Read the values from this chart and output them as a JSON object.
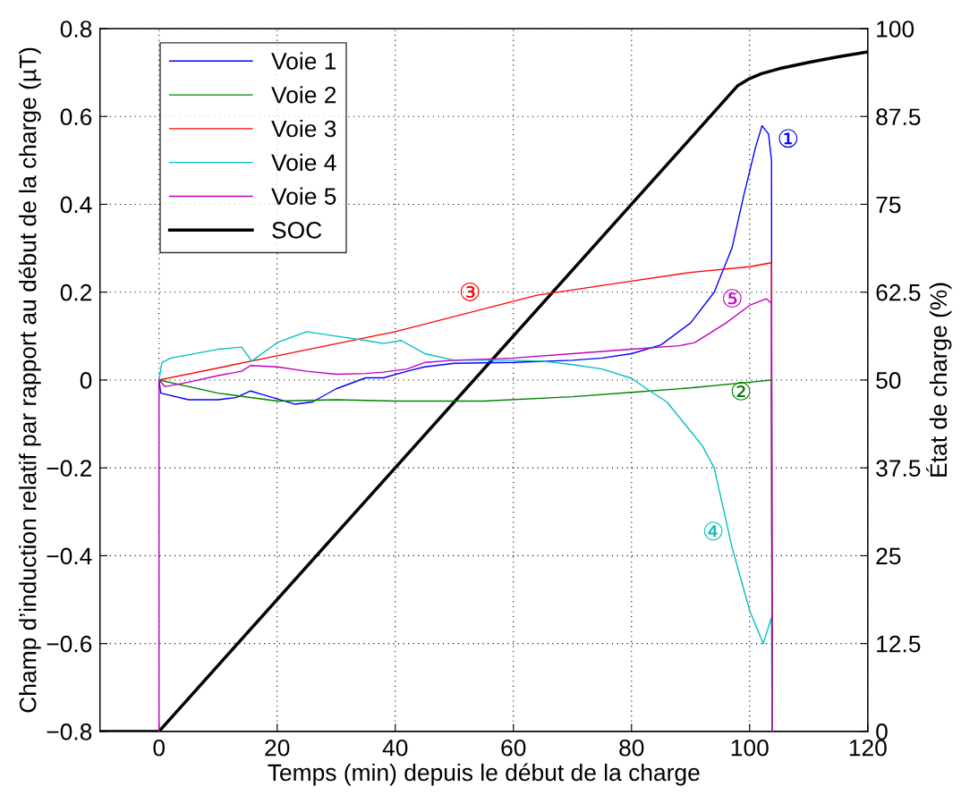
{
  "chart_data": {
    "type": "line",
    "xlabel": "Temps (min) depuis le début de la charge",
    "ylabel": "Champ d’induction relatif par rapport au début de la charge (µT)",
    "y2label": "État de charge (%)",
    "xlim": [
      -10,
      120
    ],
    "xticks": [
      0,
      20,
      40,
      60,
      80,
      100,
      120
    ],
    "ylim": [
      -0.8,
      0.8
    ],
    "yticks": [
      {
        "value": -0.8,
        "label": "−0.8"
      },
      {
        "value": -0.6,
        "label": "−0.6"
      },
      {
        "value": -0.4,
        "label": "−0.4"
      },
      {
        "value": -0.2,
        "label": "−0.2"
      },
      0,
      0.2,
      0.4,
      0.6,
      0.8
    ],
    "y2lim": [
      0,
      100
    ],
    "y2ticks": [
      0,
      12.5,
      25,
      37.5,
      50,
      62.5,
      75,
      87.5,
      100
    ],
    "grid": true,
    "legend": "top left",
    "marker": "none",
    "line_style": "solid",
    "series": [
      {
        "name": "Voie 1",
        "color": "#0000ff",
        "x": [
          0,
          0.3,
          5,
          10,
          13,
          15.5,
          18,
          23,
          26,
          30,
          35,
          38,
          42,
          45,
          50,
          60,
          70,
          75,
          80,
          85,
          90,
          94,
          97,
          99,
          101,
          102.1,
          103.2,
          103.7,
          103.8
        ],
        "values": [
          0,
          -0.03,
          -0.045,
          -0.045,
          -0.04,
          -0.025,
          -0.035,
          -0.055,
          -0.05,
          -0.02,
          0.005,
          0.005,
          0.02,
          0.03,
          0.038,
          0.04,
          0.045,
          0.05,
          0.06,
          0.08,
          0.13,
          0.2,
          0.3,
          0.42,
          0.53,
          0.579,
          0.56,
          0.5,
          -0.8
        ]
      },
      {
        "name": "Voie 2",
        "color": "#008000",
        "x": [
          0,
          10,
          20,
          30,
          40,
          55,
          70,
          80,
          90,
          100,
          103.7,
          103.8
        ],
        "values": [
          0,
          -0.03,
          -0.048,
          -0.045,
          -0.048,
          -0.048,
          -0.038,
          -0.028,
          -0.018,
          -0.005,
          0,
          -0.8
        ]
      },
      {
        "name": "Voie 3",
        "color": "#ff0000",
        "x": [
          0,
          20,
          40,
          64,
          80,
          90,
          100,
          103.7,
          103.8
        ],
        "values": [
          0,
          0.055,
          0.11,
          0.193,
          0.225,
          0.245,
          0.258,
          0.267,
          -0.8
        ]
      },
      {
        "name": "Voie 4",
        "color": "#00bfbf",
        "x": [
          0,
          0.5,
          2,
          10,
          14,
          15.7,
          20,
          25,
          30,
          35,
          38,
          41,
          45,
          50,
          60,
          65,
          70,
          75,
          80,
          83,
          86,
          89,
          92,
          94,
          97,
          100,
          102.3,
          103.7,
          103.8
        ],
        "values": [
          0,
          0.04,
          0.05,
          0.07,
          0.075,
          0.043,
          0.085,
          0.11,
          0.1,
          0.09,
          0.083,
          0.09,
          0.06,
          0.045,
          0.045,
          0.043,
          0.035,
          0.025,
          0.004,
          -0.024,
          -0.05,
          -0.1,
          -0.15,
          -0.2,
          -0.38,
          -0.525,
          -0.6,
          -0.54,
          -0.8
        ]
      },
      {
        "name": "Voie 5",
        "color": "#bf00bf",
        "x": [
          0,
          0,
          1,
          5,
          10,
          14,
          15.5,
          20,
          25,
          30,
          35,
          38,
          42,
          45,
          50,
          60,
          70,
          80,
          88,
          90.7,
          96,
          100,
          102.8,
          103.7,
          103.8
        ],
        "values": [
          -0.8,
          0,
          -0.015,
          -0.005,
          0.01,
          0.02,
          0.033,
          0.03,
          0.02,
          0.013,
          0.015,
          0.018,
          0.025,
          0.04,
          0.045,
          0.05,
          0.06,
          0.07,
          0.078,
          0.085,
          0.13,
          0.17,
          0.185,
          0.175,
          -0.8
        ]
      },
      {
        "name": "SOC",
        "color": "#000000",
        "axis": "y2",
        "x": [
          -10,
          0,
          98,
          100,
          102,
          105,
          110,
          115,
          120
        ],
        "values": [
          0,
          0,
          91.9,
          92.9,
          93.6,
          94.3,
          95.2,
          96.0,
          96.7
        ]
      }
    ],
    "annotations": [
      {
        "text": "①",
        "x": 102.1,
        "y": 0.579
      },
      {
        "text": "②",
        "x": 100,
        "y": -0.005
      },
      {
        "text": "③",
        "x": 64,
        "y": 0.193
      },
      {
        "text": "④",
        "x": 97,
        "y": -0.38
      },
      {
        "text": "⑤",
        "x": 96,
        "y": 0.13
      }
    ]
  }
}
